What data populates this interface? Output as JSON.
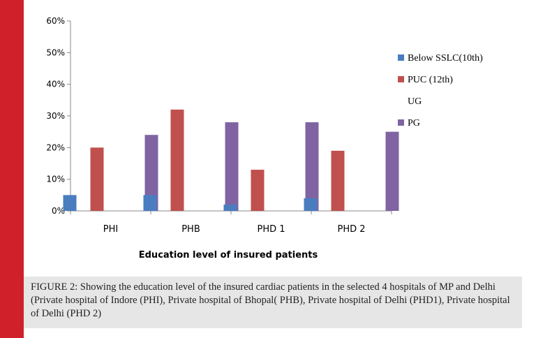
{
  "chart_data": {
    "type": "bar",
    "categories": [
      "PHI",
      "PHB",
      "PHD 1",
      "PHD 2"
    ],
    "series": [
      {
        "name": "Below SSLC(10th)",
        "color": "#4a7dbf",
        "values": [
          5,
          5,
          2,
          4
        ]
      },
      {
        "name": "PUC  (12th)",
        "color": "#c0504d",
        "values": [
          20,
          32,
          13,
          19
        ]
      },
      {
        "name": "UG",
        "color": "#9bbb59",
        "values": [
          0,
          0,
          0,
          0
        ]
      },
      {
        "name": "PG",
        "color": "#8064a2",
        "values": [
          24,
          28,
          28,
          25
        ]
      }
    ],
    "xlabel": "Education level of insured  patients",
    "ylabel": "",
    "ylim": [
      0,
      60
    ],
    "yticks": [
      "0%",
      "10%",
      "20%",
      "30%",
      "40%",
      "50%",
      "60%"
    ],
    "legend_position": "right",
    "grid": false
  },
  "caption": "FIGURE 2: Showing the education level of the insured cardiac patients in the selected 4 hospitals of MP and Delhi (Private hospital of Indore (PHI), Private hospital of Bhopal( PHB), Private hospital of Delhi (PHD1), Private hospital of Delhi (PHD 2)"
}
